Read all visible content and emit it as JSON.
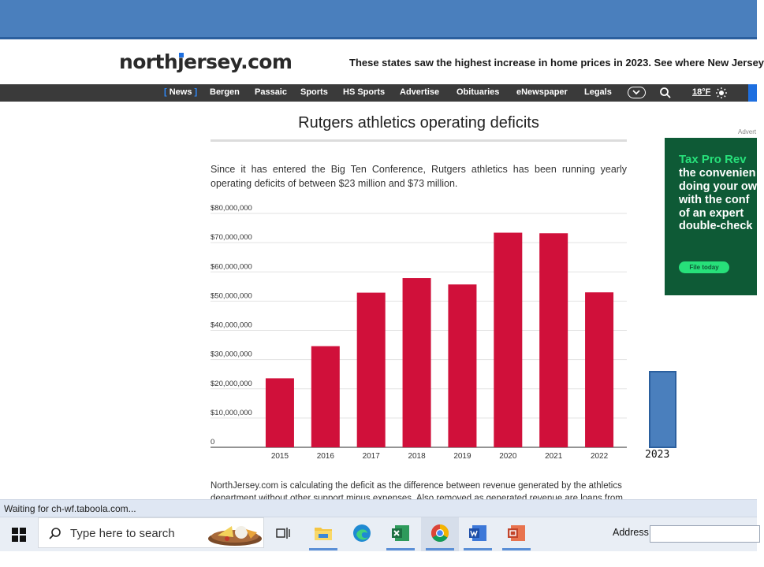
{
  "site": {
    "logo_before": "northjersey",
    "logo_after": ".com",
    "ticker": "These states saw the highest increase in home prices in 2023. See where New Jersey"
  },
  "nav": {
    "items": [
      "News",
      "Bergen",
      "Passaic",
      "Sports",
      "HS Sports",
      "Advertise",
      "Obituaries",
      "eNewspaper",
      "Legals"
    ],
    "temperature": "18°F"
  },
  "article": {
    "chart_title": "Rutgers athletics operating deficits",
    "intro": "Since it has entered the Big Ten Conference, Rutgers athletics has been running yearly operating deficits of between $23 million and $73 million.",
    "footnote": "NorthJersey.com is calculating the deficit as the difference between revenue generated by the athletics department without other support minus expenses. Also removed as generated revenue are loans from"
  },
  "chart_data": {
    "type": "bar",
    "title": "Rutgers athletics operating deficits",
    "categories": [
      "2015",
      "2016",
      "2017",
      "2018",
      "2019",
      "2020",
      "2021",
      "2022"
    ],
    "values": [
      23600000,
      34600000,
      52900000,
      57900000,
      55700000,
      73400000,
      73200000,
      53000000
    ],
    "ylim": [
      0,
      80000000
    ],
    "yticks": [
      "0",
      "$10,000,000",
      "$20,000,000",
      "$30,000,000",
      "$40,000,000",
      "$50,000,000",
      "$60,000,000",
      "$70,000,000",
      "$80,000,000"
    ],
    "grid": true,
    "color": "#d0103a"
  },
  "ad": {
    "label": "Advert",
    "headline": "Tax Pro Rev",
    "lines": [
      "the convenien",
      "doing your ow",
      "with  the conf",
      "of an expert",
      "double-check"
    ],
    "button": "File today"
  },
  "overlay": {
    "box_label": "2023"
  },
  "status": {
    "text": "Waiting for ch-wf.taboola.com..."
  },
  "taskbar": {
    "search_placeholder": "Type here to search",
    "address_label": "Address"
  },
  "colors": {
    "accent_blue": "#4a7fbd",
    "nav_bg": "#3a3a3a",
    "logo_j": "#1e6fe0",
    "bar_red": "#d0103a",
    "ad_green": "#0e5a36"
  },
  "icons": [
    "windows-start-icon",
    "search-icon",
    "task-view-icon",
    "file-explorer-icon",
    "edge-icon",
    "excel-icon",
    "chrome-icon",
    "word-icon",
    "app-icon",
    "chevron-down-icon",
    "sun-icon"
  ]
}
